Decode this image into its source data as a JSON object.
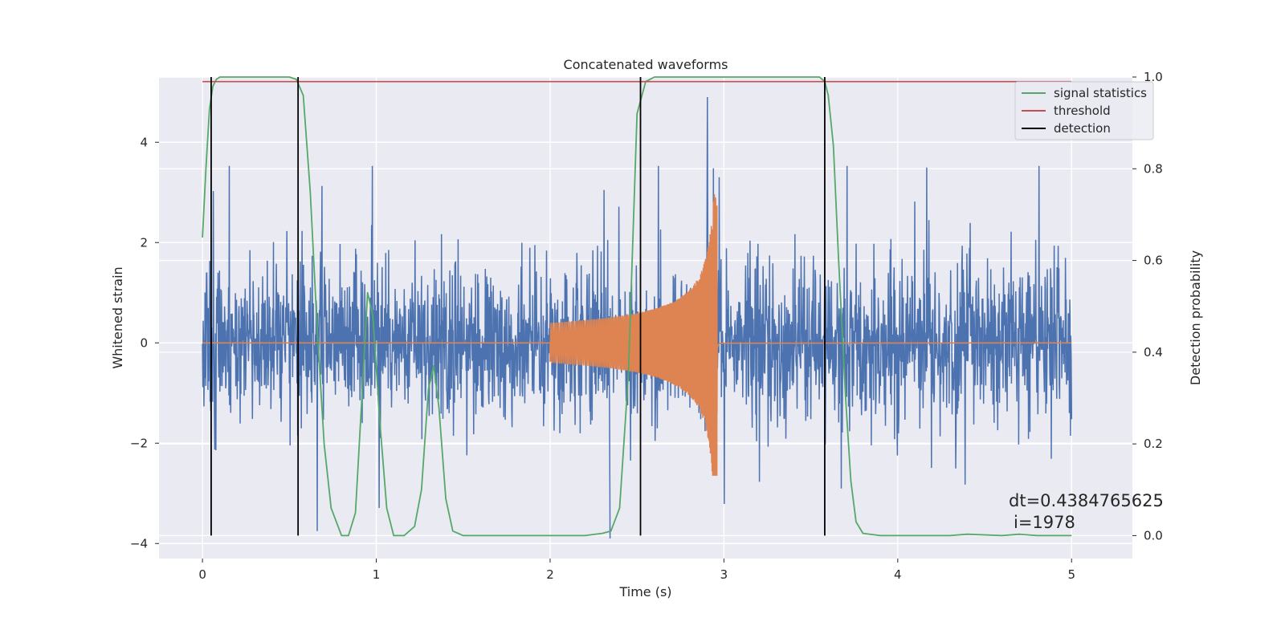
{
  "chart_data": {
    "type": "line",
    "title": "Concatenated waveforms",
    "xlabel": "Time (s)",
    "ylabel": "Whitened strain",
    "y2label": "Detection probability",
    "xlim": [
      -0.25,
      5.35
    ],
    "ylim": [
      -4.3,
      5.3
    ],
    "y2lim": [
      -0.05,
      1.0
    ],
    "x_ticks": [
      0,
      1,
      2,
      3,
      4,
      5
    ],
    "y_ticks": [
      -4,
      -2,
      0,
      2,
      4
    ],
    "y2_ticks": [
      0.0,
      0.2,
      0.4,
      0.6,
      0.8,
      1.0
    ],
    "grid": true,
    "legend_position": "top-right",
    "strain_noise": {
      "name": "",
      "color": "#4c72b0",
      "x_range": [
        0,
        5
      ],
      "typical_peak_amplitude": 2.5,
      "max_value": 4.9,
      "min_value": -3.9
    },
    "injected_signal": {
      "name": "",
      "color": "#dd8452",
      "x_start": 2.0,
      "x_merger": 2.96,
      "x_end": 5.0,
      "initial_amplitude": 0.4,
      "peak_amplitude": 3.0,
      "min_value": -2.65
    },
    "series": [
      {
        "name": "signal statistics",
        "color": "#55a868",
        "axis": "right",
        "x": [
          0,
          0.02,
          0.04,
          0.06,
          0.08,
          0.1,
          0.15,
          0.5,
          0.54,
          0.58,
          0.62,
          0.66,
          0.7,
          0.74,
          0.8,
          0.84,
          0.88,
          0.92,
          0.95,
          0.98,
          1.02,
          1.06,
          1.1,
          1.16,
          1.22,
          1.26,
          1.3,
          1.33,
          1.36,
          1.4,
          1.44,
          1.5,
          2.0,
          2.2,
          2.3,
          2.35,
          2.4,
          2.45,
          2.5,
          2.55,
          2.6,
          3.55,
          3.58,
          3.6,
          3.63,
          3.66,
          3.7,
          3.73,
          3.76,
          3.8,
          3.9,
          4.0,
          4.3,
          4.4,
          4.6,
          4.7,
          4.8,
          5.0
        ],
        "values": [
          0.65,
          0.8,
          0.93,
          0.98,
          0.995,
          1.0,
          1.0,
          1.0,
          0.995,
          0.96,
          0.75,
          0.45,
          0.2,
          0.06,
          0.0,
          0.0,
          0.05,
          0.32,
          0.53,
          0.48,
          0.25,
          0.06,
          0.0,
          0.0,
          0.02,
          0.1,
          0.32,
          0.37,
          0.28,
          0.08,
          0.01,
          0.0,
          0.0,
          0.0,
          0.005,
          0.01,
          0.06,
          0.35,
          0.92,
          0.99,
          1.0,
          1.0,
          0.99,
          0.96,
          0.85,
          0.6,
          0.3,
          0.12,
          0.03,
          0.005,
          0.0,
          0.0,
          0.0,
          0.003,
          0.0,
          0.003,
          0.0,
          0.0
        ]
      },
      {
        "name": "threshold",
        "color": "#c44e52",
        "axis": "right",
        "x": [
          0,
          5
        ],
        "values": [
          0.99,
          0.99
        ]
      },
      {
        "name": "detection",
        "color": "#000000",
        "axis": "right",
        "x": [
          0.05,
          0.55,
          2.52,
          3.58
        ],
        "values": [
          1.0,
          1.0,
          1.0,
          1.0
        ]
      }
    ],
    "annotations": [
      "dt=0.4384765625",
      "i=1978"
    ]
  }
}
